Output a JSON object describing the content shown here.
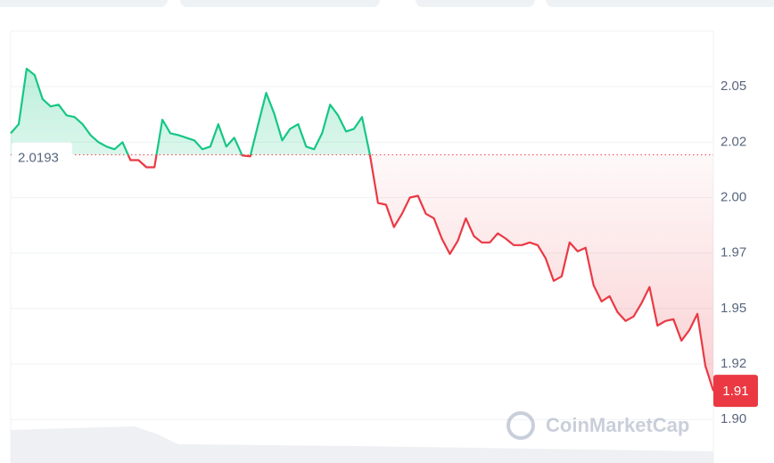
{
  "chart_data": {
    "type": "line",
    "reference_value": 2.0193,
    "watermark": "CoinMarketCap",
    "up_color": "#16c784",
    "down_color": "#ea3943",
    "values": [
      2.029,
      2.0331,
      2.0581,
      2.0552,
      2.0444,
      2.0411,
      2.0419,
      2.0371,
      2.0363,
      2.0331,
      2.0282,
      2.025,
      2.023,
      2.0218,
      2.025,
      2.0169,
      2.0169,
      2.0137,
      2.0137,
      2.0351,
      2.029,
      2.0282,
      2.027,
      2.0258,
      2.0218,
      2.023,
      2.0331,
      2.023,
      2.027,
      2.019,
      2.0186,
      2.0331,
      2.0472,
      2.0379,
      2.0258,
      2.031,
      2.0331,
      2.023,
      2.0218,
      2.029,
      2.0419,
      2.0371,
      2.0298,
      2.031,
      2.0363,
      2.019,
      1.9976,
      1.9968,
      1.9867,
      1.9927,
      2.0,
      2.0008,
      1.9927,
      1.9907,
      1.9815,
      1.9746,
      1.9806,
      1.9907,
      1.9827,
      1.9798,
      1.9798,
      1.9839,
      1.9815,
      1.9786,
      1.9786,
      1.9798,
      1.9786,
      1.9726,
      1.9625,
      1.9645,
      1.9798,
      1.9758,
      1.9774,
      1.9605,
      1.9532,
      1.9556,
      1.9484,
      1.9444,
      1.9464,
      1.9524,
      1.9597,
      1.9423,
      1.9444,
      1.9452,
      1.9355,
      1.9403,
      1.9476,
      1.9242,
      1.9129
    ],
    "value_labels": [
      null,
      null,
      null,
      null,
      null,
      null,
      null,
      null,
      null,
      null,
      null,
      null,
      null,
      null,
      null,
      null,
      null,
      null,
      null,
      null,
      null,
      null,
      null,
      null,
      null,
      null,
      null,
      null,
      null,
      null,
      null,
      null,
      null,
      null,
      null,
      null,
      null,
      null,
      null,
      null,
      null,
      null,
      null,
      null,
      null,
      null,
      null,
      null,
      null,
      null,
      null,
      null,
      null,
      null,
      null,
      null,
      null,
      null,
      null,
      null,
      null,
      null,
      null,
      null,
      null,
      null,
      null,
      null,
      null,
      null,
      null,
      null,
      null,
      null,
      null,
      null,
      null,
      null,
      null,
      null,
      null,
      null,
      null,
      null,
      null,
      null,
      null,
      null,
      "1.91"
    ],
    "ylim": [
      1.882,
      2.075
    ],
    "yticks": [
      2.05,
      {
        "value": 2.025,
        "label": "2.02"
      },
      {
        "value": 2,
        "label": "2.00"
      },
      {
        "value": 1.975,
        "label": "1.97"
      },
      1.95,
      {
        "value": 1.925,
        "label": "1.92"
      },
      {
        "value": 1.9,
        "label": "1.90"
      }
    ],
    "grid": true
  }
}
